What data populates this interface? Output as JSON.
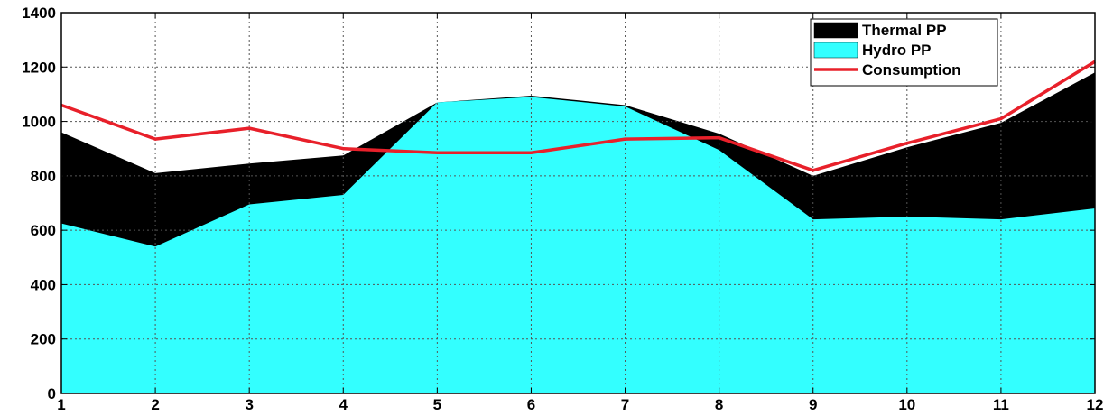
{
  "chart_data": {
    "type": "area",
    "x": [
      1,
      2,
      3,
      4,
      5,
      6,
      7,
      8,
      9,
      10,
      11,
      12
    ],
    "series": [
      {
        "name": "Thermal PP",
        "type": "area",
        "color": "#000000",
        "values": [
          960,
          810,
          845,
          875,
          1070,
          1095,
          1060,
          955,
          800,
          905,
          995,
          1180
        ]
      },
      {
        "name": "Hydro PP",
        "type": "area",
        "color": "#33FFFF",
        "values": [
          625,
          540,
          695,
          730,
          1070,
          1090,
          1055,
          895,
          640,
          650,
          640,
          680
        ]
      },
      {
        "name": "Consumption",
        "type": "line",
        "color": "#E8202A",
        "values": [
          1060,
          935,
          975,
          900,
          885,
          885,
          935,
          940,
          820,
          920,
          1010,
          1220
        ]
      }
    ],
    "xlim": [
      1,
      12
    ],
    "ylim": [
      0,
      1400
    ],
    "xticks": [
      "1",
      "2",
      "3",
      "4",
      "5",
      "6",
      "7",
      "8",
      "9",
      "10",
      "11",
      "12"
    ],
    "yticks": [
      "0",
      "200",
      "400",
      "600",
      "800",
      "1000",
      "1200",
      "1400"
    ],
    "grid": true,
    "legend_position": "top-right",
    "title": "",
    "xlabel": "",
    "ylabel": ""
  }
}
